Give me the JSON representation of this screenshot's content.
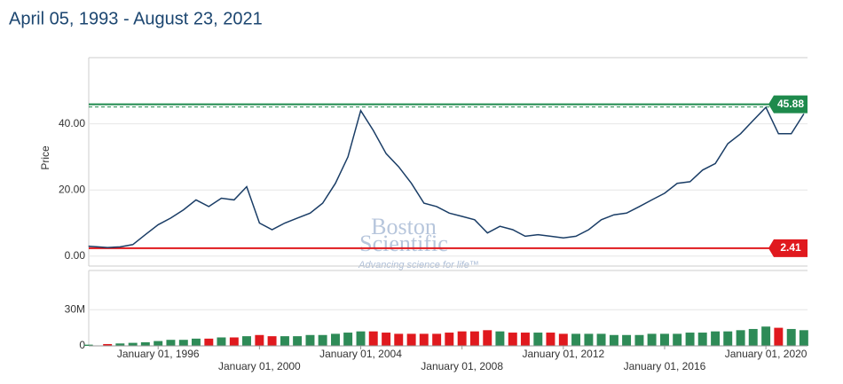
{
  "chart_data": [
    {
      "type": "line",
      "title": "April 05, 1993 - August 23, 2021",
      "ylabel": "Price",
      "watermark": [
        "Boston",
        "Scientific",
        "Advancing science for life™"
      ],
      "xlim": [
        "1993-04-05",
        "2021-08-23"
      ],
      "x": [
        "1993-04",
        "1994-01",
        "1994-07",
        "1995-01",
        "1995-07",
        "1996-01",
        "1996-07",
        "1997-01",
        "1997-07",
        "1998-01",
        "1998-07",
        "1999-01",
        "1999-07",
        "2000-01",
        "2000-07",
        "2001-01",
        "2001-07",
        "2002-01",
        "2002-07",
        "2003-01",
        "2003-07",
        "2004-01",
        "2004-07",
        "2005-01",
        "2005-07",
        "2006-01",
        "2006-07",
        "2007-01",
        "2007-07",
        "2008-01",
        "2008-07",
        "2009-01",
        "2009-07",
        "2010-01",
        "2010-07",
        "2011-01",
        "2011-07",
        "2012-01",
        "2012-07",
        "2013-01",
        "2013-07",
        "2014-01",
        "2014-07",
        "2015-01",
        "2015-07",
        "2016-01",
        "2016-07",
        "2017-01",
        "2017-07",
        "2018-01",
        "2018-07",
        "2019-01",
        "2019-07",
        "2020-01",
        "2020-07",
        "2021-01",
        "2021-07"
      ],
      "values": [
        3.0,
        2.6,
        2.8,
        3.5,
        6.5,
        9.5,
        11.5,
        14,
        17,
        15,
        17.5,
        17,
        21,
        10,
        8,
        10,
        11.5,
        13,
        16,
        22,
        30,
        44,
        38,
        31,
        27,
        22,
        16,
        15,
        13,
        12,
        11,
        7,
        9,
        8,
        6,
        6.5,
        6,
        5.5,
        6,
        8,
        11,
        12.5,
        13,
        15,
        17,
        19,
        22,
        22.5,
        26,
        28,
        34,
        37,
        41,
        45,
        37,
        37,
        43
      ],
      "color": "#1a3d66",
      "ylim": [
        -3,
        60
      ],
      "yticks": [
        {
          "value": 0,
          "label": "0.00"
        },
        {
          "value": 20,
          "label": "20.00"
        },
        {
          "value": 40,
          "label": "40.00"
        }
      ],
      "high": {
        "value": 45.88,
        "color": "#1e8a4c"
      },
      "low": {
        "value": 2.41,
        "color": "#e0191e"
      },
      "dashed_line": 45.1
    },
    {
      "type": "bar",
      "xlim": [
        "1993-04-05",
        "2021-08-23"
      ],
      "x": [
        "1993-04",
        "1994-01",
        "1994-07",
        "1995-01",
        "1995-07",
        "1996-01",
        "1996-07",
        "1997-01",
        "1997-07",
        "1998-01",
        "1998-07",
        "1999-01",
        "1999-07",
        "2000-01",
        "2000-07",
        "2001-01",
        "2001-07",
        "2002-01",
        "2002-07",
        "2003-01",
        "2003-07",
        "2004-01",
        "2004-07",
        "2005-01",
        "2005-07",
        "2006-01",
        "2006-07",
        "2007-01",
        "2007-07",
        "2008-01",
        "2008-07",
        "2009-01",
        "2009-07",
        "2010-01",
        "2010-07",
        "2011-01",
        "2011-07",
        "2012-01",
        "2012-07",
        "2013-01",
        "2013-07",
        "2014-01",
        "2014-07",
        "2015-01",
        "2015-07",
        "2016-01",
        "2016-07",
        "2017-01",
        "2017-07",
        "2018-01",
        "2018-07",
        "2019-01",
        "2019-07",
        "2020-01",
        "2020-07",
        "2021-01",
        "2021-07"
      ],
      "values": [
        1000000,
        1500000,
        2000000,
        2500000,
        3000000,
        4000000,
        5000000,
        5000000,
        6000000,
        6000000,
        7000000,
        7000000,
        8000000,
        9000000,
        8000000,
        8000000,
        8000000,
        9000000,
        9000000,
        10000000,
        11000000,
        12000000,
        12000000,
        11000000,
        10000000,
        10000000,
        10000000,
        10000000,
        11000000,
        12000000,
        12000000,
        13000000,
        12000000,
        11000000,
        11000000,
        11000000,
        11000000,
        10000000,
        10000000,
        10000000,
        10000000,
        9000000,
        9000000,
        9000000,
        10000000,
        10000000,
        10000000,
        11000000,
        11000000,
        12000000,
        12000000,
        13000000,
        14000000,
        16000000,
        15000000,
        14000000,
        13000000
      ],
      "colors": [
        "#2e8b57",
        "#e0191e"
      ],
      "ylim": [
        0,
        62500000
      ],
      "yticks": [
        0,
        {
          "value": 30000000,
          "label": "30M"
        }
      ],
      "xticks": [
        {
          "value": "1996-01-01",
          "label": "January 01, 1996"
        },
        {
          "value": "2000-01-01",
          "label": "January 01, 2000"
        },
        {
          "value": "2004-01-01",
          "label": "January 01, 2004"
        },
        {
          "value": "2008-01-01",
          "label": "January 01, 2008"
        },
        {
          "value": "2012-01-01",
          "label": "January 01, 2012"
        },
        {
          "value": "2016-01-01",
          "label": "January 01, 2016"
        },
        {
          "value": "2020-01-01",
          "label": "January 01, 2020"
        }
      ]
    }
  ]
}
